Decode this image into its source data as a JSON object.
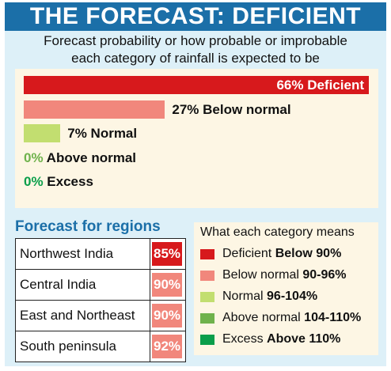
{
  "title": "THE FORECAST: DEFICIENT",
  "subtitle_line1": "Forecast probability or how probable or improbable",
  "subtitle_line2": "each category of rainfall is expected to be",
  "colors": {
    "title_bar": "#1b6fa8",
    "panel_bg": "#ddf0f8",
    "deficient": "#d7191c",
    "below_normal": "#f1877c",
    "normal": "#c2de70",
    "above_normal": "#6fb24c",
    "excess": "#0a9e4a"
  },
  "chart_data": {
    "type": "bar",
    "orientation": "horizontal",
    "categories": [
      "Deficient",
      "Below normal",
      "Normal",
      "Above normal",
      "Excess"
    ],
    "values": [
      66,
      27,
      7,
      0,
      0
    ],
    "value_labels": [
      "66%",
      "27%",
      "7%",
      "0%",
      "0%"
    ],
    "colors": [
      "#d7191c",
      "#f1877c",
      "#c2de70",
      "#6fb24c",
      "#0a9e4a"
    ],
    "xlim": [
      0,
      66
    ]
  },
  "regions": {
    "title": "Forecast for regions",
    "rows": [
      {
        "name": "Northwest India",
        "value": "85%",
        "color": "#d7191c"
      },
      {
        "name": "Central India",
        "value": "90%",
        "color": "#f1877c"
      },
      {
        "name": "East and Northeast",
        "value": "90%",
        "color": "#f1877c"
      },
      {
        "name": "South peninsula",
        "value": "92%",
        "color": "#f1877c"
      }
    ]
  },
  "legend": {
    "title": "What each category means",
    "items": [
      {
        "name": "Deficient",
        "range": "Below 90%",
        "color": "#d7191c"
      },
      {
        "name": "Below normal",
        "range": "90-96%",
        "color": "#f1877c"
      },
      {
        "name": "Normal",
        "range": "96-104%",
        "color": "#c2de70"
      },
      {
        "name": "Above normal",
        "range": "104-110%",
        "color": "#6fb24c"
      },
      {
        "name": "Excess",
        "range": "Above 110%",
        "color": "#0a9e4a"
      }
    ]
  }
}
